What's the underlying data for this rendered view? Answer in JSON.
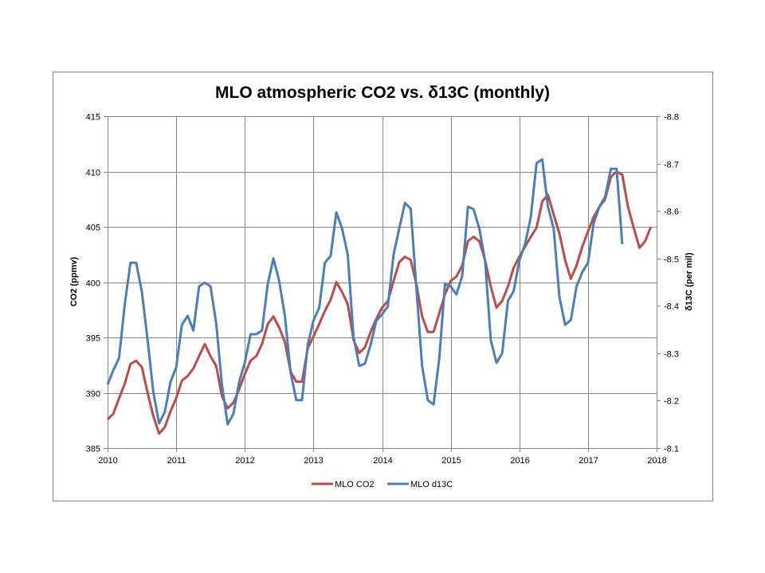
{
  "chart_data": {
    "type": "line",
    "title": "MLO atmospheric CO2 vs. δ13C (monthly)",
    "xlabel": "",
    "ylabel": "CO2 (ppmv)",
    "y2label": "δ13C (per mil)",
    "xlim": [
      2010,
      2018
    ],
    "ylim": [
      385,
      415
    ],
    "y2lim": [
      -8.1,
      -8.8
    ],
    "y2_reversed": true,
    "grid": true,
    "legend": "bottom",
    "x_ticks": [
      "2010",
      "2011",
      "2012",
      "2013",
      "2014",
      "2015",
      "2016",
      "2017",
      "2018"
    ],
    "y_ticks": [
      "385",
      "390",
      "395",
      "400",
      "405",
      "410",
      "415"
    ],
    "y2_ticks": [
      "-8.8",
      "-8.7",
      "-8.6",
      "-8.5",
      "-8.4",
      "-8.3",
      "-8.2",
      "-8.1"
    ],
    "x_start": "2010-01",
    "x_step": "monthly",
    "series": [
      {
        "name": "MLO CO2",
        "axis": "left",
        "color": "#BE4B48",
        "values": [
          387.6,
          388.1,
          389.5,
          390.8,
          392.6,
          392.9,
          392.3,
          390.0,
          387.9,
          386.3,
          386.9,
          388.3,
          389.5,
          391.1,
          391.5,
          392.2,
          393.3,
          394.4,
          393.3,
          392.4,
          389.7,
          388.6,
          389.1,
          390.3,
          391.7,
          392.9,
          393.3,
          394.4,
          396.2,
          396.9,
          395.9,
          394.6,
          391.9,
          391.0,
          391.0,
          394.0,
          395.1,
          396.2,
          397.4,
          398.4,
          400.0,
          399.1,
          398.0,
          394.8,
          393.6,
          394.1,
          395.5,
          396.7,
          397.7,
          398.3,
          400.1,
          401.8,
          402.3,
          402.0,
          399.8,
          396.9,
          395.5,
          395.5,
          397.2,
          398.9,
          400.1,
          400.5,
          401.5,
          403.7,
          404.1,
          403.7,
          402.0,
          399.6,
          397.7,
          398.3,
          399.6,
          401.3,
          402.3,
          403.2,
          404.1,
          404.9,
          407.3,
          407.9,
          406.1,
          404.4,
          402.0,
          400.3,
          401.5,
          403.2,
          404.6,
          405.9,
          406.8,
          407.5,
          409.5,
          410.0,
          409.7,
          406.8,
          404.9,
          403.1,
          403.7,
          405.0
        ]
      },
      {
        "name": "MLO d13C",
        "axis": "right",
        "color": "#4A7EBB",
        "values": [
          -8.234,
          -8.264,
          -8.29,
          -8.402,
          -8.491,
          -8.491,
          -8.429,
          -8.328,
          -8.218,
          -8.152,
          -8.176,
          -8.239,
          -8.27,
          -8.36,
          -8.379,
          -8.348,
          -8.441,
          -8.449,
          -8.441,
          -8.362,
          -8.234,
          -8.15,
          -8.172,
          -8.239,
          -8.281,
          -8.34,
          -8.34,
          -8.348,
          -8.446,
          -8.5,
          -8.453,
          -8.379,
          -8.259,
          -8.201,
          -8.201,
          -8.318,
          -8.369,
          -8.396,
          -8.491,
          -8.505,
          -8.597,
          -8.563,
          -8.508,
          -8.335,
          -8.273,
          -8.278,
          -8.318,
          -8.369,
          -8.382,
          -8.399,
          -8.508,
          -8.563,
          -8.617,
          -8.605,
          -8.436,
          -8.273,
          -8.201,
          -8.192,
          -8.29,
          -8.446,
          -8.441,
          -8.424,
          -8.463,
          -8.609,
          -8.604,
          -8.563,
          -8.496,
          -8.328,
          -8.28,
          -8.3,
          -8.41,
          -8.431,
          -8.496,
          -8.53,
          -8.587,
          -8.701,
          -8.709,
          -8.609,
          -8.563,
          -8.419,
          -8.36,
          -8.37,
          -8.441,
          -8.471,
          -8.491,
          -8.575,
          -8.609,
          -8.63,
          -8.689,
          -8.689,
          -8.53
        ]
      }
    ]
  }
}
